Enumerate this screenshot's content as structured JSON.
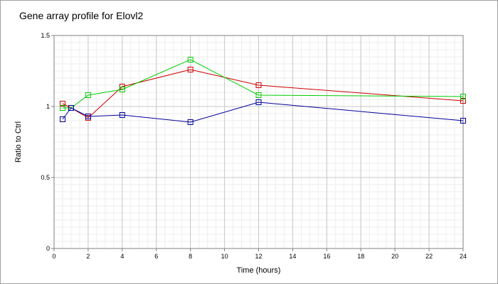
{
  "chart_data": {
    "type": "line",
    "title": "Gene array profile for Elovl2",
    "xlabel": "Time (hours)",
    "ylabel": "Ratio to Ctrl",
    "xlim": [
      0,
      24
    ],
    "ylim": [
      0,
      1.5
    ],
    "x_ticks": [
      "0",
      "2",
      "4",
      "6",
      "8",
      "10",
      "12",
      "14",
      "16",
      "18",
      "20",
      "22",
      "24"
    ],
    "y_ticks": [
      "0",
      "0.5",
      "1",
      "1.5"
    ],
    "grid": true,
    "legend": "none",
    "series": [
      {
        "color": "#cc0000",
        "marker": "square-open",
        "points": [
          [
            0.5,
            1.02
          ],
          [
            1,
            0.99
          ],
          [
            2,
            0.92
          ],
          [
            4,
            1.14
          ],
          [
            8,
            1.26
          ],
          [
            12,
            1.15
          ],
          [
            24,
            1.04
          ]
        ]
      },
      {
        "color": "#00cc00",
        "marker": "square-open",
        "points": [
          [
            0.5,
            0.99
          ],
          [
            1,
            0.99
          ],
          [
            2,
            1.08
          ],
          [
            4,
            1.12
          ],
          [
            8,
            1.33
          ],
          [
            12,
            1.08
          ],
          [
            24,
            1.07
          ]
        ]
      },
      {
        "color": "#000099",
        "marker": "square-open",
        "points": [
          [
            0.5,
            0.91
          ],
          [
            1,
            0.99
          ],
          [
            2,
            0.93
          ],
          [
            4,
            0.94
          ],
          [
            8,
            0.89
          ],
          [
            12,
            1.03
          ],
          [
            24,
            0.9
          ]
        ]
      }
    ]
  }
}
